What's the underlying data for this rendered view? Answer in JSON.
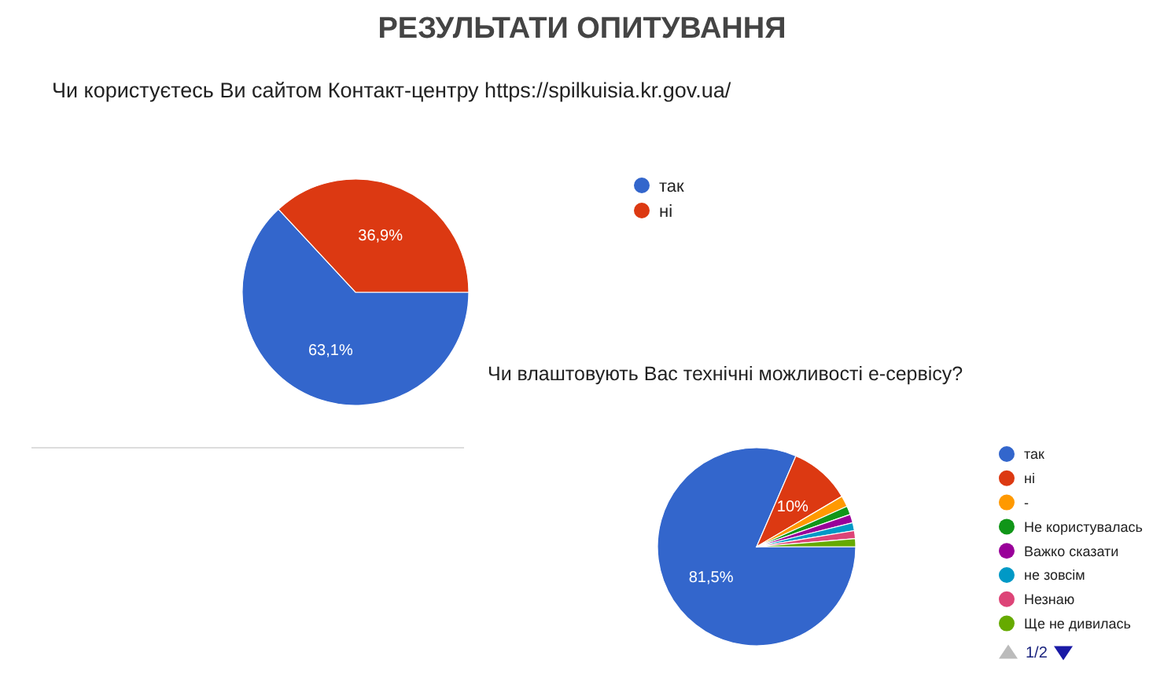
{
  "chart_data": [
    {
      "type": "pie",
      "title": "РЕЗУЛЬТАТИ ОПИТУВАННЯ",
      "subtitle": "Чи користуєтесь Ви сайтом Контакт-центру https://spilkuisia.kr.gov.ua/",
      "categories": [
        "так",
        "ні"
      ],
      "values": [
        63.1,
        36.9
      ],
      "colors": [
        "#3366cc",
        "#dc3912"
      ],
      "value_labels": [
        "63,1%",
        "36,9%"
      ],
      "legend": "right"
    },
    {
      "type": "pie",
      "title": "Чи влаштовують Вас технічні можливості е-сервісу?",
      "categories": [
        "так",
        "ні",
        "-",
        "Не користувалась",
        "Важко сказати",
        "не зовсім",
        "Незнаю",
        "Ще не дивилась"
      ],
      "values": [
        81.5,
        10,
        1.8,
        1.4,
        1.4,
        1.3,
        1.3,
        1.3
      ],
      "colors": [
        "#3366cc",
        "#dc3912",
        "#ff9900",
        "#109618",
        "#990099",
        "#0099c6",
        "#dd4477",
        "#66aa00"
      ],
      "value_labels": [
        "81,5%",
        "10%",
        null,
        null,
        null,
        null,
        null,
        null
      ],
      "legend": "right",
      "annotations": [
        "1/2"
      ]
    }
  ]
}
